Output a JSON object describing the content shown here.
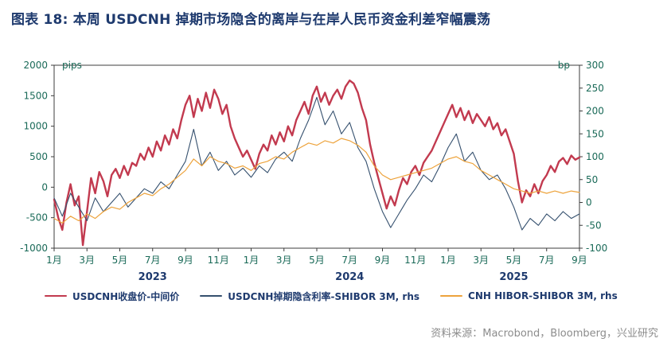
{
  "title": "图表 18: 本周 USDCNH 掉期市场隐含的离岸与在岸人民币资金利差窄幅震荡",
  "source": "资料来源：Macrobond，Bloomberg，兴业研究",
  "colors": {
    "title_text": "#1e3a6e",
    "axis_text": "#1a6a58",
    "year_text": "#1e3a6e",
    "frame": "#3c3c3c",
    "legend_text": "#1e3a6e",
    "source_text": "#8c8c8c",
    "series_red": "#c23a4f",
    "series_navy": "#35506e",
    "series_orange": "#eda33c"
  },
  "chart_data": {
    "type": "line",
    "title": "本周 USDCNH 掉期市场隐含的离岸与在岸人民币资金利差窄幅震荡",
    "grid": false,
    "legend_position": "bottom",
    "x_range": [
      0,
      32
    ],
    "x_ticks": {
      "months": [
        0,
        2,
        4,
        6,
        8,
        10,
        12,
        14,
        16,
        18,
        20,
        22,
        24,
        26,
        28,
        30,
        32
      ],
      "labels": [
        "1月",
        "3月",
        "5月",
        "7月",
        "9月",
        "11月",
        "1月",
        "3月",
        "5月",
        "7月",
        "9月",
        "11月",
        "1月",
        "3月",
        "5月",
        "7月",
        "9月"
      ]
    },
    "year_labels": [
      {
        "month": 6,
        "label": "2023"
      },
      {
        "month": 18,
        "label": "2024"
      },
      {
        "month": 28,
        "label": "2025"
      }
    ],
    "left_axis": {
      "unit": "pips",
      "min": -1000,
      "max": 2000,
      "ticks": [
        2000,
        1500,
        1000,
        500,
        0,
        -500,
        -1000
      ]
    },
    "right_axis": {
      "unit": "bp",
      "min": -100,
      "max": 300,
      "ticks": [
        300,
        250,
        200,
        150,
        100,
        50,
        0,
        -50,
        -100
      ]
    },
    "series": [
      {
        "name": "USDCNH收盘价-中间价",
        "color": "#c23a4f",
        "width": 2.4,
        "axis": "left",
        "x_start": 0,
        "x_step": 0.25,
        "values": [
          -200,
          -500,
          -700,
          -250,
          50,
          -300,
          -150,
          -950,
          -400,
          150,
          -100,
          250,
          100,
          -150,
          200,
          300,
          150,
          350,
          200,
          400,
          350,
          550,
          450,
          650,
          500,
          750,
          600,
          850,
          700,
          950,
          800,
          1100,
          1350,
          1500,
          1150,
          1450,
          1250,
          1550,
          1300,
          1600,
          1450,
          1200,
          1350,
          1000,
          800,
          650,
          500,
          600,
          450,
          300,
          550,
          700,
          600,
          850,
          700,
          900,
          750,
          1000,
          850,
          1100,
          1250,
          1400,
          1200,
          1500,
          1650,
          1400,
          1550,
          1350,
          1500,
          1600,
          1450,
          1650,
          1750,
          1700,
          1550,
          1300,
          1100,
          700,
          400,
          150,
          -100,
          -350,
          -150,
          -300,
          -50,
          150,
          50,
          250,
          350,
          200,
          400,
          500,
          600,
          750,
          900,
          1050,
          1200,
          1350,
          1150,
          1300,
          1100,
          1250,
          1050,
          1200,
          1100,
          1000,
          1150,
          950,
          1050,
          850,
          950,
          750,
          550,
          100,
          -250,
          -50,
          -150,
          50,
          -100,
          100,
          200,
          350,
          250,
          420,
          480,
          380,
          520,
          450,
          490
        ]
      },
      {
        "name": "USDCNH掉期隐含利率-SHIBOR 3M, rhs",
        "color": "#35506e",
        "width": 1.1,
        "axis": "right",
        "x_start": 0,
        "x_step": 0.5,
        "values": [
          10,
          -30,
          20,
          -10,
          -40,
          10,
          -20,
          0,
          20,
          -10,
          10,
          30,
          20,
          45,
          30,
          60,
          90,
          160,
          80,
          110,
          70,
          90,
          60,
          75,
          55,
          80,
          65,
          95,
          110,
          90,
          140,
          180,
          230,
          170,
          200,
          150,
          175,
          120,
          90,
          30,
          -20,
          -55,
          -25,
          5,
          30,
          60,
          45,
          80,
          120,
          150,
          90,
          110,
          70,
          50,
          60,
          30,
          -10,
          -60,
          -35,
          -50,
          -25,
          -40,
          -20,
          -35,
          -25
        ]
      },
      {
        "name": "CNH HIBOR-SHIBOR 3M, rhs",
        "color": "#eda33c",
        "width": 1.2,
        "axis": "right",
        "x_start": 0,
        "x_step": 0.5,
        "values": [
          -35,
          -45,
          -30,
          -40,
          -25,
          -35,
          -20,
          -10,
          -15,
          0,
          10,
          20,
          15,
          30,
          40,
          55,
          70,
          95,
          80,
          100,
          90,
          85,
          75,
          80,
          70,
          85,
          90,
          100,
          95,
          110,
          120,
          130,
          125,
          135,
          130,
          140,
          135,
          125,
          110,
          80,
          60,
          50,
          55,
          60,
          65,
          70,
          75,
          85,
          95,
          100,
          90,
          85,
          70,
          60,
          50,
          40,
          30,
          25,
          20,
          25,
          20,
          25,
          20,
          25,
          22
        ]
      }
    ]
  }
}
